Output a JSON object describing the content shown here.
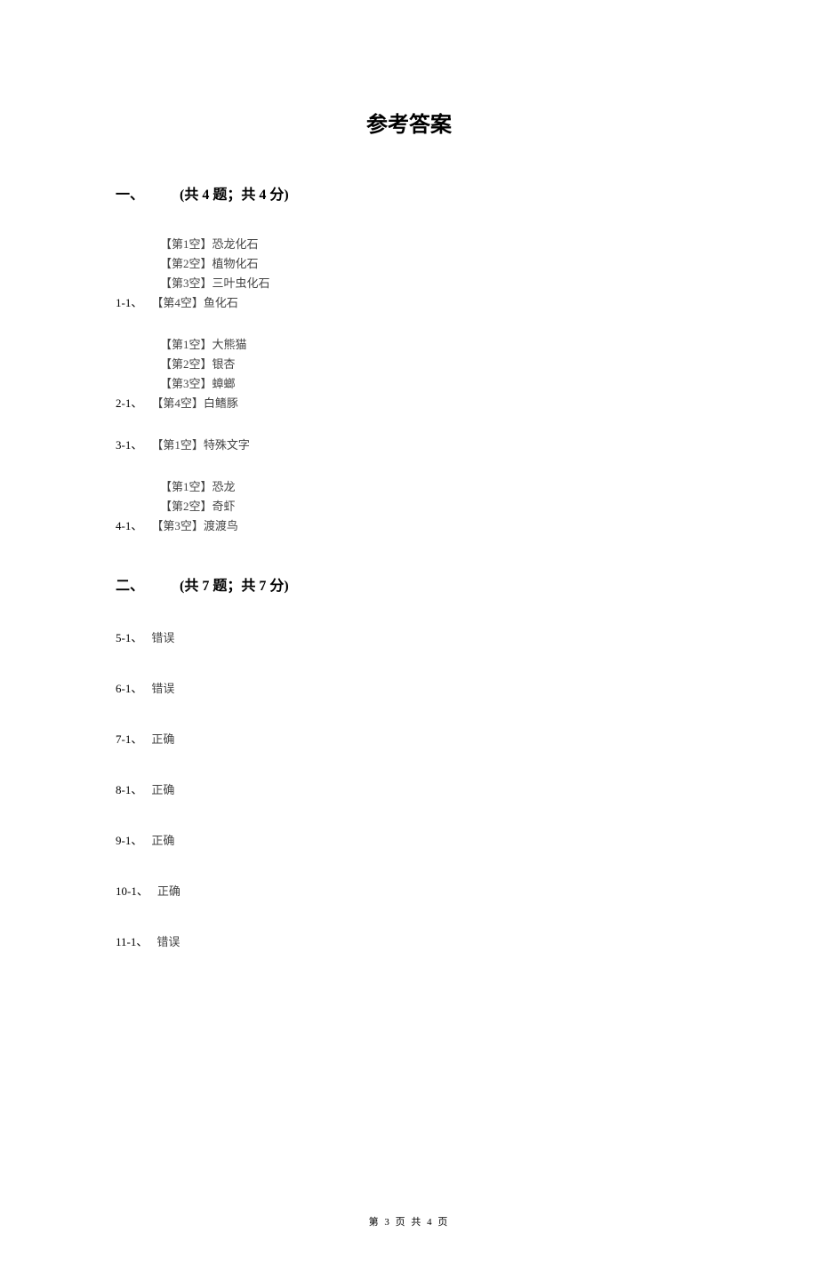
{
  "page_title": "参考答案",
  "section1": {
    "header": "一、　　　(共 4 题；共 4 分)",
    "groups": [
      {
        "number": "1-1、",
        "lines": [
          "【第1空】恐龙化石",
          "【第2空】植物化石",
          "【第3空】三叶虫化石",
          "【第4空】鱼化石"
        ]
      },
      {
        "number": "2-1、",
        "lines": [
          "【第1空】大熊猫",
          "【第2空】银杏",
          "【第3空】蟑螂",
          "【第4空】白鳍豚"
        ]
      },
      {
        "number": "3-1、",
        "lines": [
          "【第1空】特殊文字"
        ]
      },
      {
        "number": "4-1、",
        "lines": [
          "【第1空】恐龙",
          "【第2空】奇虾",
          "【第3空】渡渡鸟"
        ]
      }
    ]
  },
  "section2": {
    "header": "二、　　　(共 7 题；共 7 分)",
    "items": [
      {
        "number": "5-1、",
        "answer": "错误"
      },
      {
        "number": "6-1、",
        "answer": "错误"
      },
      {
        "number": "7-1、",
        "answer": "正确"
      },
      {
        "number": "8-1、",
        "answer": "正确"
      },
      {
        "number": "9-1、",
        "answer": "正确"
      },
      {
        "number": "10-1、",
        "answer": "正确"
      },
      {
        "number": "11-1、",
        "answer": "错误"
      }
    ]
  },
  "footer": "第 3 页 共 4 页"
}
